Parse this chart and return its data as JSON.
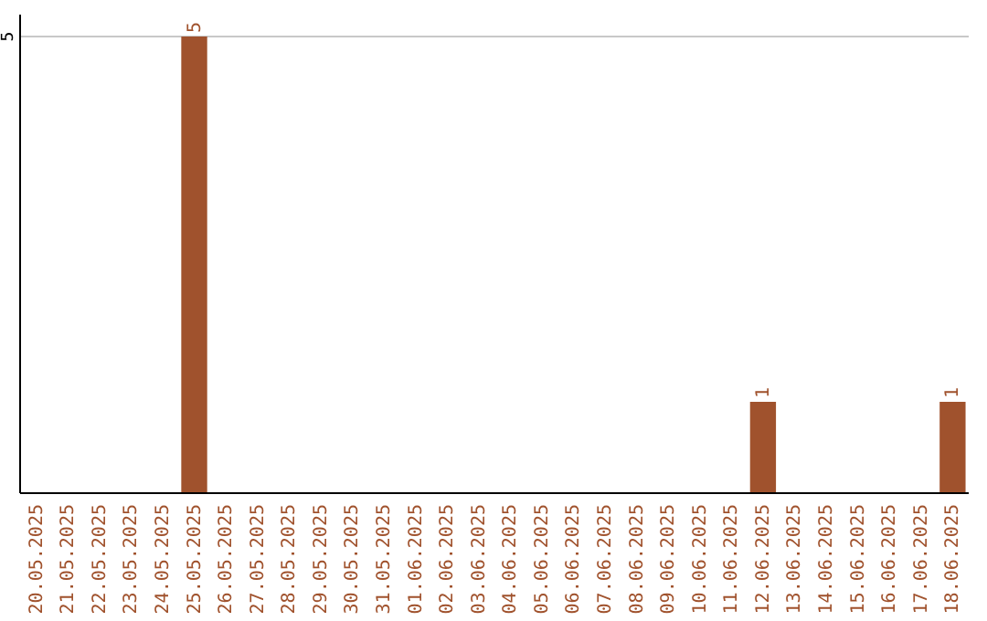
{
  "chart_data": {
    "type": "bar",
    "categories": [
      "20.05.2025",
      "21.05.2025",
      "22.05.2025",
      "23.05.2025",
      "24.05.2025",
      "25.05.2025",
      "26.05.2025",
      "27.05.2025",
      "28.05.2025",
      "29.05.2025",
      "30.05.2025",
      "31.05.2025",
      "01.06.2025",
      "02.06.2025",
      "03.06.2025",
      "04.06.2025",
      "05.06.2025",
      "06.06.2025",
      "07.06.2025",
      "08.06.2025",
      "09.06.2025",
      "10.06.2025",
      "11.06.2025",
      "12.06.2025",
      "13.06.2025",
      "14.06.2025",
      "15.06.2025",
      "16.06.2025",
      "17.06.2025",
      "18.06.2025"
    ],
    "values": [
      0,
      0,
      0,
      0,
      0,
      5,
      0,
      0,
      0,
      0,
      0,
      0,
      0,
      0,
      0,
      0,
      0,
      0,
      0,
      0,
      0,
      0,
      0,
      1,
      0,
      0,
      0,
      0,
      0,
      1
    ],
    "value_labels": [
      null,
      null,
      null,
      null,
      null,
      "5",
      null,
      null,
      null,
      null,
      null,
      null,
      null,
      null,
      null,
      null,
      null,
      null,
      null,
      null,
      null,
      null,
      null,
      "1",
      null,
      null,
      null,
      null,
      null,
      "1"
    ],
    "color": "#a0522d",
    "ylim": [
      0,
      5
    ],
    "yticks": [
      5
    ],
    "ref_lines": [
      {
        "axis": "y",
        "value": 5,
        "color": "#c8c8c8"
      }
    ]
  }
}
